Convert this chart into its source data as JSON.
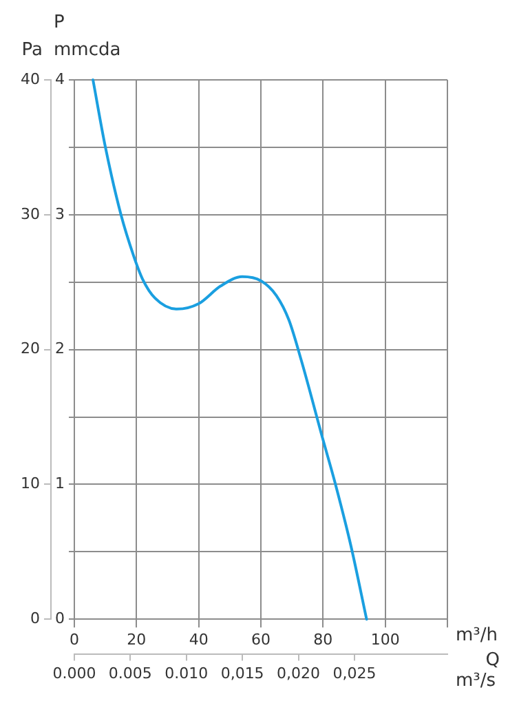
{
  "chart_data": {
    "type": "line",
    "x": [
      6,
      10,
      15,
      19,
      22,
      26,
      33,
      40,
      47,
      54,
      60,
      65,
      69,
      73,
      80,
      84,
      89,
      94
    ],
    "series": [
      {
        "color": "#1a9fe0",
        "values": [
          40,
          35,
          30,
          27,
          25.2,
          23.8,
          23,
          23.4,
          24.7,
          25.4,
          25.1,
          24,
          22.2,
          19.2,
          13.3,
          10,
          5.4,
          0
        ]
      }
    ],
    "xlim": [
      0,
      120
    ],
    "xticks": [
      0,
      20,
      40,
      60,
      80,
      100,
      {
        "value": 120,
        "label": null
      }
    ],
    "x2lim": [
      0,
      0.0333
    ],
    "x2ticks": [
      {
        "value": 0,
        "label": "0.000"
      },
      {
        "value": 0.005,
        "label": "0.005"
      },
      {
        "value": 0.01,
        "label": "0.010"
      },
      {
        "value": 0.015,
        "label": "0,015"
      },
      {
        "value": 0.02,
        "label": "0,020"
      },
      {
        "value": 0.025,
        "label": "0,025"
      }
    ],
    "ylim": [
      0,
      40
    ],
    "yticks": [
      0,
      10,
      20,
      30,
      40
    ],
    "y2lim": [
      0,
      4
    ],
    "y2ticks": [
      0,
      {
        "value": 0.5,
        "label": null
      },
      1,
      {
        "value": 1.5,
        "label": null
      },
      2,
      {
        "value": 2.5,
        "label": null
      },
      3,
      {
        "value": 3.5,
        "label": null
      },
      4
    ],
    "xlabel": "m³/h",
    "x2label": "m³/s",
    "ylabel": "Pa",
    "y2label": "mmcda",
    "annotations": [
      "P",
      "Q"
    ],
    "grid": true,
    "legend": false,
    "marker": "none",
    "line_style": "solid"
  }
}
